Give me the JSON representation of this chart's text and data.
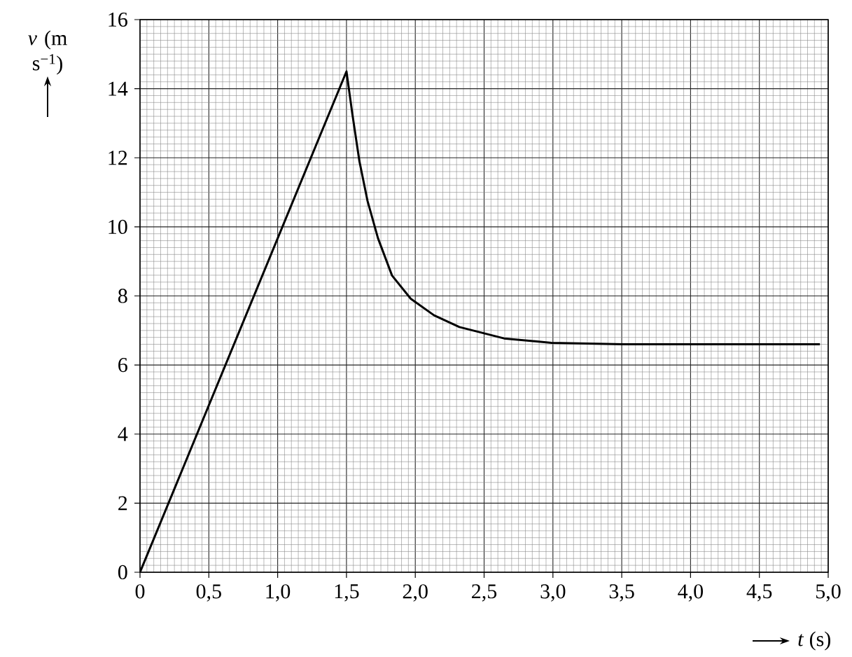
{
  "chart_data": {
    "type": "line",
    "xlabel": "*t* (s)",
    "ylabel": "*v* (m s$^{−1}$)",
    "x": [
      0,
      1.5,
      1.543,
      1.594,
      1.653,
      1.729,
      1.831,
      1.967,
      2.136,
      2.32,
      2.645,
      2.99,
      3.51,
      4.94
    ],
    "series": [
      {
        "color": "#000000",
        "values": [
          0,
          14.5,
          13.26,
          11.9,
          10.75,
          9.67,
          8.59,
          7.92,
          7.44,
          7.1,
          6.77,
          6.64,
          6.6,
          6.6
        ]
      }
    ],
    "xlim": [
      0,
      5
    ],
    "ylim": [
      0,
      16
    ],
    "xticks": [
      0,
      {
        "value": 0.5,
        "label": "0,5"
      },
      {
        "value": 1,
        "label": "1,0"
      },
      {
        "value": 1.5,
        "label": "1,5"
      },
      {
        "value": 2,
        "label": "2,0"
      },
      {
        "value": 2.5,
        "label": "2,5"
      },
      {
        "value": 3,
        "label": "3,0"
      },
      {
        "value": 3.5,
        "label": "3,5"
      },
      {
        "value": 4,
        "label": "4,0"
      },
      {
        "value": 4.5,
        "label": "4,5"
      },
      {
        "value": 5,
        "label": "5,0"
      }
    ],
    "yticks": [
      0,
      2,
      4,
      6,
      8,
      10,
      12,
      14,
      16
    ],
    "grid": true,
    "marker": "none",
    "line_style": "solid"
  }
}
